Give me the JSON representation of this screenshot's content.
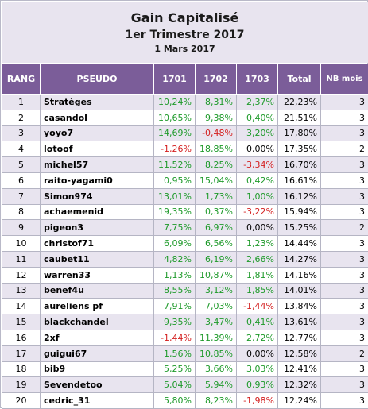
{
  "header": {
    "title": "Gain Capitalisé",
    "subtitle": "1er Trimestre 2017",
    "date": "1 Mars 2017"
  },
  "columns": [
    "RANG",
    "PSEUDO",
    "1701",
    "1702",
    "1703",
    "Total",
    "NB mois"
  ],
  "rows": [
    {
      "rang": "1",
      "pseudo": "Stratèges",
      "m1": "10,24%",
      "m2": "8,31%",
      "m3": "2,37%",
      "total": "22,23%",
      "nb": "3"
    },
    {
      "rang": "2",
      "pseudo": "casandol",
      "m1": "10,65%",
      "m2": "9,38%",
      "m3": "0,40%",
      "total": "21,51%",
      "nb": "3"
    },
    {
      "rang": "3",
      "pseudo": "yoyo7",
      "m1": "14,69%",
      "m2": "-0,48%",
      "m3": "3,20%",
      "total": "17,80%",
      "nb": "3"
    },
    {
      "rang": "4",
      "pseudo": "lotoof",
      "m1": "-1,26%",
      "m2": "18,85%",
      "m3": "0,00%",
      "total": "17,35%",
      "nb": "2"
    },
    {
      "rang": "5",
      "pseudo": "michel57",
      "m1": "11,52%",
      "m2": "8,25%",
      "m3": "-3,34%",
      "total": "16,70%",
      "nb": "3"
    },
    {
      "rang": "6",
      "pseudo": "raito-yagami0",
      "m1": "0,95%",
      "m2": "15,04%",
      "m3": "0,42%",
      "total": "16,61%",
      "nb": "3"
    },
    {
      "rang": "7",
      "pseudo": "Simon974",
      "m1": "13,01%",
      "m2": "1,73%",
      "m3": "1,00%",
      "total": "16,12%",
      "nb": "3"
    },
    {
      "rang": "8",
      "pseudo": "achaemenid",
      "m1": "19,35%",
      "m2": "0,37%",
      "m3": "-3,22%",
      "total": "15,94%",
      "nb": "3"
    },
    {
      "rang": "9",
      "pseudo": "pigeon3",
      "m1": "7,75%",
      "m2": "6,97%",
      "m3": "0,00%",
      "total": "15,25%",
      "nb": "2"
    },
    {
      "rang": "10",
      "pseudo": "christof71",
      "m1": "6,09%",
      "m2": "6,56%",
      "m3": "1,23%",
      "total": "14,44%",
      "nb": "3"
    },
    {
      "rang": "11",
      "pseudo": "caubet11",
      "m1": "4,82%",
      "m2": "6,19%",
      "m3": "2,66%",
      "total": "14,27%",
      "nb": "3"
    },
    {
      "rang": "12",
      "pseudo": "warren33",
      "m1": "1,13%",
      "m2": "10,87%",
      "m3": "1,81%",
      "total": "14,16%",
      "nb": "3"
    },
    {
      "rang": "13",
      "pseudo": "benef4u",
      "m1": "8,55%",
      "m2": "3,12%",
      "m3": "1,85%",
      "total": "14,01%",
      "nb": "3"
    },
    {
      "rang": "14",
      "pseudo": "aureliens pf",
      "m1": "7,91%",
      "m2": "7,03%",
      "m3": "-1,44%",
      "total": "13,84%",
      "nb": "3"
    },
    {
      "rang": "15",
      "pseudo": "blackchandel",
      "m1": "9,35%",
      "m2": "3,47%",
      "m3": "0,41%",
      "total": "13,61%",
      "nb": "3"
    },
    {
      "rang": "16",
      "pseudo": "2xf",
      "m1": "-1,44%",
      "m2": "11,39%",
      "m3": "2,72%",
      "total": "12,77%",
      "nb": "3"
    },
    {
      "rang": "17",
      "pseudo": "guigui67",
      "m1": "1,56%",
      "m2": "10,85%",
      "m3": "0,00%",
      "total": "12,58%",
      "nb": "2"
    },
    {
      "rang": "18",
      "pseudo": "bib9",
      "m1": "5,25%",
      "m2": "3,66%",
      "m3": "3,03%",
      "total": "12,41%",
      "nb": "3"
    },
    {
      "rang": "19",
      "pseudo": "Sevendetoo",
      "m1": "5,04%",
      "m2": "5,94%",
      "m3": "0,93%",
      "total": "12,32%",
      "nb": "3"
    },
    {
      "rang": "20",
      "pseudo": "cedric_31",
      "m1": "5,80%",
      "m2": "8,23%",
      "m3": "-1,98%",
      "total": "12,24%",
      "nb": "3"
    }
  ],
  "colors": {
    "header_bg": "#7b5d99",
    "band_bg": "#e8e4ef",
    "positive": "#1e9a2a",
    "negative": "#d42020"
  }
}
